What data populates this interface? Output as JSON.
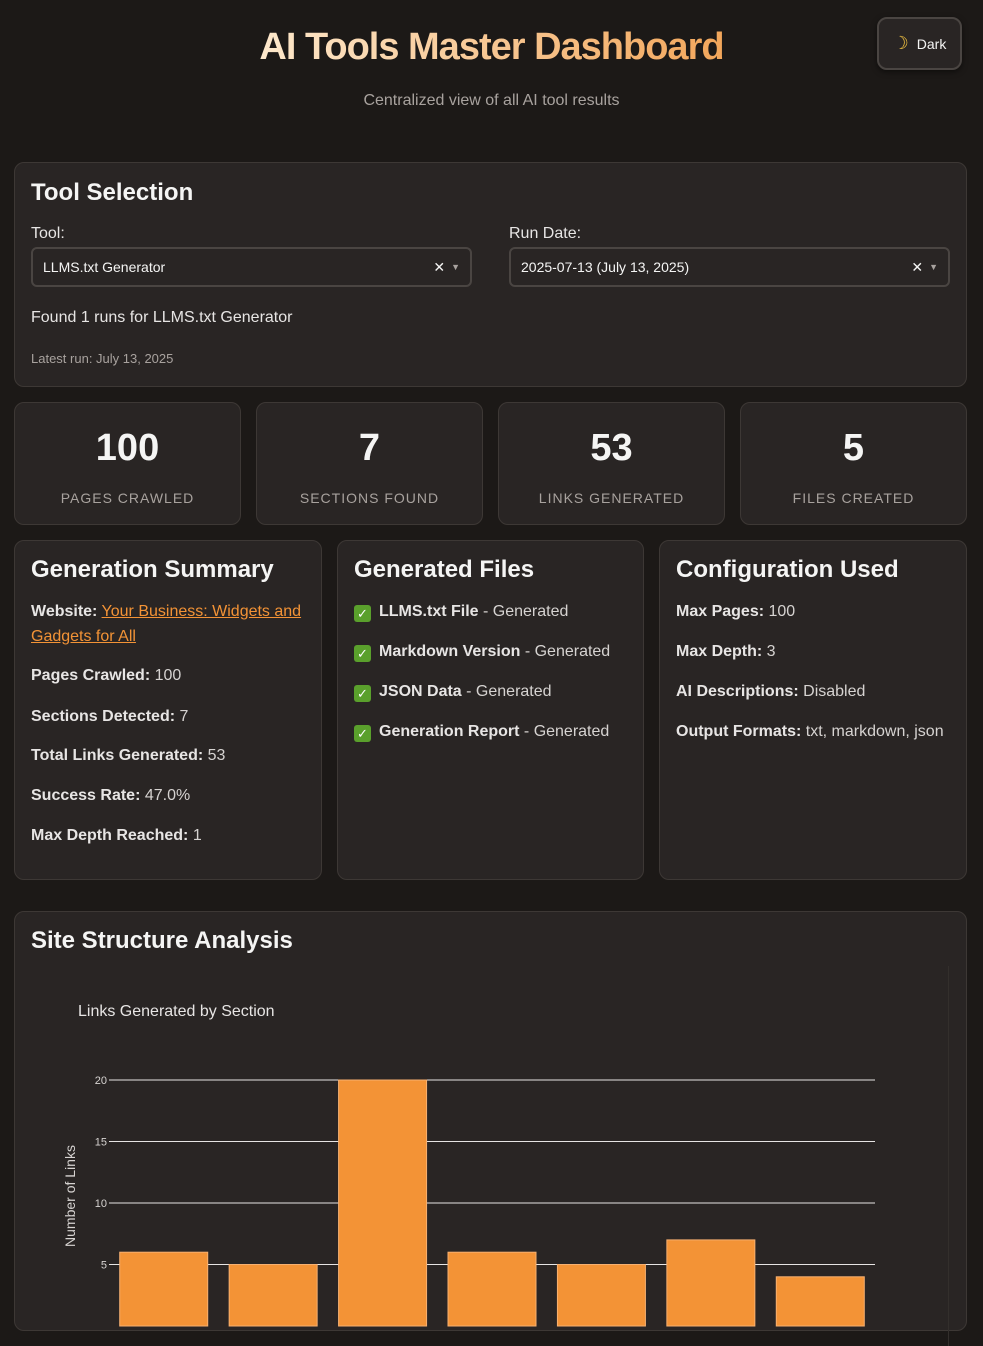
{
  "header": {
    "title": "AI Tools Master Dashboard",
    "subtitle": "Centralized view of all AI tool results",
    "theme_label": "Dark",
    "theme_icon": "moon-icon"
  },
  "tool_selection": {
    "title": "Tool Selection",
    "tool_label": "Tool:",
    "tool_value": "LLMS.txt Generator",
    "date_label": "Run Date:",
    "date_value": "2025-07-13 (July 13, 2025)",
    "found_text": "Found 1 runs for LLMS.txt Generator",
    "latest_run": "Latest run: July 13, 2025"
  },
  "stats": [
    {
      "value": "100",
      "label": "PAGES CRAWLED"
    },
    {
      "value": "7",
      "label": "SECTIONS FOUND"
    },
    {
      "value": "53",
      "label": "LINKS GENERATED"
    },
    {
      "value": "5",
      "label": "FILES CREATED"
    }
  ],
  "summary": {
    "title": "Generation Summary",
    "website_label": "Website:",
    "website_link": "Your Business: Widgets and Gadgets for All",
    "items": [
      {
        "k": "Pages Crawled:",
        "v": " 100"
      },
      {
        "k": "Sections Detected:",
        "v": " 7"
      },
      {
        "k": "Total Links Generated:",
        "v": " 53"
      },
      {
        "k": "Success Rate:",
        "v": " 47.0%"
      },
      {
        "k": "Max Depth Reached:",
        "v": " 1"
      }
    ]
  },
  "files": {
    "title": "Generated Files",
    "items": [
      {
        "k": "LLMS.txt File",
        "v": " - Generated"
      },
      {
        "k": "Markdown Version",
        "v": " - Generated"
      },
      {
        "k": "JSON Data",
        "v": " - Generated"
      },
      {
        "k": "Generation Report",
        "v": " - Generated"
      }
    ]
  },
  "config": {
    "title": "Configuration Used",
    "items": [
      {
        "k": "Max Pages:",
        "v": " 100"
      },
      {
        "k": "Max Depth:",
        "v": " 3"
      },
      {
        "k": "AI Descriptions:",
        "v": " Disabled"
      },
      {
        "k": "Output Formats:",
        "v": " txt, markdown, json"
      }
    ]
  },
  "structure": {
    "title": "Site Structure Analysis"
  },
  "chart_data": {
    "type": "bar",
    "title": "Links Generated by Section",
    "ylabel": "Number of Links",
    "xlabel": "",
    "values": [
      6,
      5,
      20,
      6,
      5,
      7,
      4
    ],
    "yticks": [
      "5",
      "10",
      "15",
      "20"
    ],
    "ylim": [
      0,
      20
    ],
    "grid": true,
    "color": "#f39336"
  },
  "colors": {
    "accent": "#f39336",
    "background": "#1c1917",
    "card": "#292524"
  }
}
